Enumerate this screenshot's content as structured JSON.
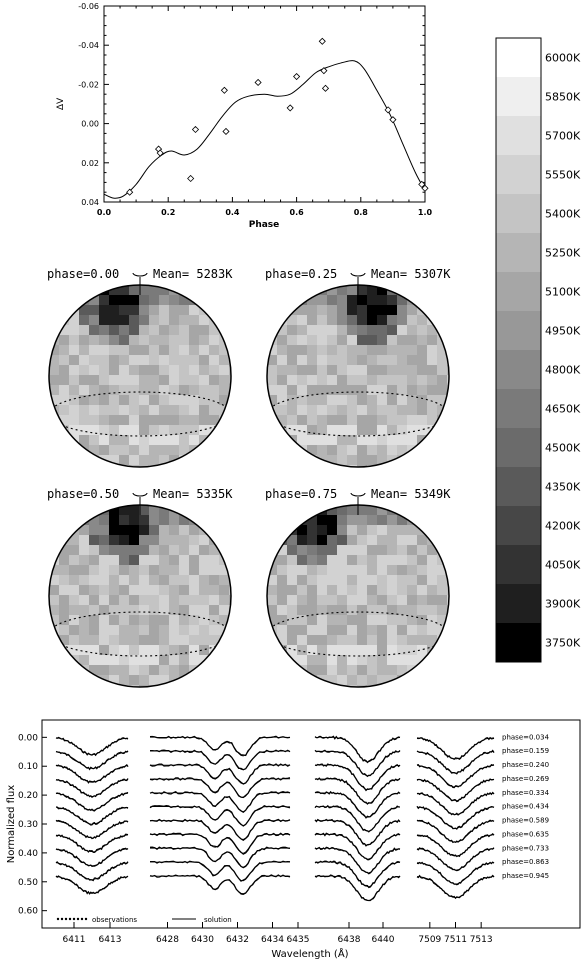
{
  "lightcurve": {
    "type": "scatter",
    "xlabel": "Phase",
    "ylabel": "ΔV",
    "xlim": [
      0.0,
      1.0
    ],
    "ylim": [
      -0.06,
      0.04
    ],
    "xticks": [
      0.0,
      0.2,
      0.4,
      0.6,
      0.8,
      1.0
    ],
    "xtick_labels": [
      "0.0",
      "0.2",
      "0.4",
      "0.6",
      "0.8",
      "1.0"
    ],
    "yticks": [
      -0.06,
      -0.04,
      -0.02,
      0.0,
      0.02,
      0.04
    ],
    "ytick_labels": [
      "-0.06",
      "-0.04",
      "-0.02",
      "0.00",
      "0.02",
      "0.04"
    ],
    "observations": [
      {
        "x": 0.08,
        "y": 0.035
      },
      {
        "x": 0.17,
        "y": 0.013
      },
      {
        "x": 0.175,
        "y": 0.015
      },
      {
        "x": 0.27,
        "y": 0.028
      },
      {
        "x": 0.285,
        "y": 0.003
      },
      {
        "x": 0.375,
        "y": -0.017
      },
      {
        "x": 0.38,
        "y": 0.004
      },
      {
        "x": 0.48,
        "y": -0.021
      },
      {
        "x": 0.58,
        "y": -0.008
      },
      {
        "x": 0.6,
        "y": -0.024
      },
      {
        "x": 0.68,
        "y": -0.042
      },
      {
        "x": 0.685,
        "y": -0.027
      },
      {
        "x": 0.69,
        "y": -0.018
      },
      {
        "x": 0.885,
        "y": -0.007
      },
      {
        "x": 0.9,
        "y": -0.002
      },
      {
        "x": 0.99,
        "y": 0.031
      },
      {
        "x": 1.0,
        "y": 0.033
      }
    ],
    "solution": [
      {
        "x": 0.0,
        "y": 0.036
      },
      {
        "x": 0.03,
        "y": 0.038
      },
      {
        "x": 0.06,
        "y": 0.037
      },
      {
        "x": 0.1,
        "y": 0.031
      },
      {
        "x": 0.14,
        "y": 0.022
      },
      {
        "x": 0.18,
        "y": 0.016
      },
      {
        "x": 0.21,
        "y": 0.014
      },
      {
        "x": 0.25,
        "y": 0.016
      },
      {
        "x": 0.29,
        "y": 0.013
      },
      {
        "x": 0.33,
        "y": 0.005
      },
      {
        "x": 0.37,
        "y": -0.004
      },
      {
        "x": 0.41,
        "y": -0.011
      },
      {
        "x": 0.45,
        "y": -0.014
      },
      {
        "x": 0.5,
        "y": -0.015
      },
      {
        "x": 0.54,
        "y": -0.014
      },
      {
        "x": 0.58,
        "y": -0.015
      },
      {
        "x": 0.62,
        "y": -0.02
      },
      {
        "x": 0.66,
        "y": -0.026
      },
      {
        "x": 0.7,
        "y": -0.029
      },
      {
        "x": 0.74,
        "y": -0.031
      },
      {
        "x": 0.78,
        "y": -0.032
      },
      {
        "x": 0.81,
        "y": -0.028
      },
      {
        "x": 0.85,
        "y": -0.017
      },
      {
        "x": 0.89,
        "y": -0.005
      },
      {
        "x": 0.93,
        "y": 0.01
      },
      {
        "x": 0.97,
        "y": 0.025
      },
      {
        "x": 1.0,
        "y": 0.034
      }
    ]
  },
  "maps": [
    {
      "label": "phase=0.00",
      "mean": "Mean=  5283K",
      "spot_angle": 95,
      "base": 0.58
    },
    {
      "label": "phase=0.25",
      "mean": "Mean=  5307K",
      "spot_angle": 30,
      "base": 0.6
    },
    {
      "label": "phase=0.50",
      "mean": "Mean=  5335K",
      "spot_angle": 80,
      "base": 0.62
    },
    {
      "label": "phase=0.75",
      "mean": "Mean=  5349K",
      "spot_angle": 130,
      "base": 0.63
    }
  ],
  "colorbar": {
    "labels": [
      "6000K",
      "5850K",
      "5700K",
      "5550K",
      "5400K",
      "5250K",
      "5100K",
      "4950K",
      "4800K",
      "4650K",
      "4500K",
      "4350K",
      "4200K",
      "4050K",
      "3900K",
      "3750K"
    ],
    "shades": [
      "#ffffff",
      "#efefef",
      "#e0e0e0",
      "#d2d2d2",
      "#c4c4c4",
      "#b5b5b5",
      "#a6a6a6",
      "#989898",
      "#898989",
      "#7a7a7a",
      "#6b6b6b",
      "#5a5a5a",
      "#474747",
      "#333333",
      "#1f1f1f",
      "#000000"
    ]
  },
  "profiles": {
    "ylabel": "Normalized flux",
    "xlabel": "Wavelength (Å)",
    "ylim": [
      0.66,
      -0.06
    ],
    "yticks": [
      0.0,
      0.1,
      0.2,
      0.3,
      0.4,
      0.5,
      0.6
    ],
    "ytick_labels": [
      "0.00",
      "0.10",
      "0.20",
      "0.30",
      "0.40",
      "0.50",
      "0.60"
    ],
    "phases": [
      "phase=0.034",
      "phase=0.159",
      "phase=0.240",
      "phase=0.269",
      "phase=0.334",
      "phase=0.434",
      "phase=0.589",
      "phase=0.635",
      "phase=0.733",
      "phase=0.863",
      "phase=0.945"
    ],
    "offset_step": 0.048,
    "legend": {
      "observations": "observations",
      "solution": "solution"
    },
    "panels": [
      {
        "range": [
          6410.0,
          6414.0
        ],
        "ticks": [
          6411,
          6413
        ],
        "lines": [
          {
            "center": 6412.0,
            "width": 1.1,
            "depth": 0.06
          }
        ]
      },
      {
        "range": [
          6427.0,
          6435.0
        ],
        "ticks": [
          6428,
          6430,
          6432,
          6434
        ],
        "lines": [
          {
            "center": 6430.7,
            "width": 0.5,
            "depth": 0.045
          },
          {
            "center": 6432.3,
            "width": 0.6,
            "depth": 0.065
          }
        ]
      },
      {
        "range": [
          6436.0,
          6441.0
        ],
        "ticks": [
          6435,
          6438,
          6440
        ],
        "lines": [
          {
            "center": 6439.1,
            "width": 0.9,
            "depth": 0.085
          }
        ]
      },
      {
        "range": [
          7508.0,
          7514.0
        ],
        "ticks": [
          7509,
          7511,
          7513
        ],
        "lines": [
          {
            "center": 7511.0,
            "width": 1.5,
            "depth": 0.075
          }
        ]
      }
    ]
  }
}
